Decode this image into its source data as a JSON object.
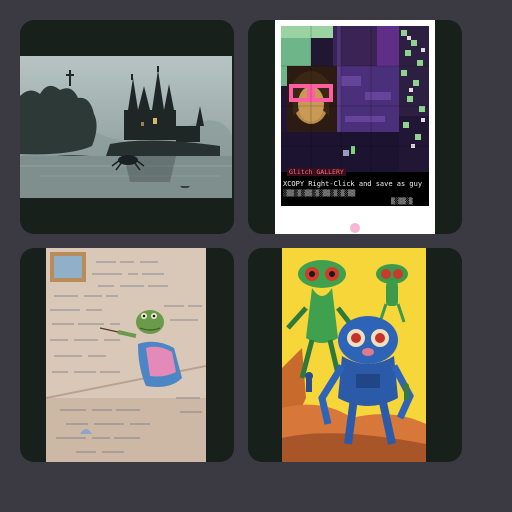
{
  "gallery": {
    "items": [
      {
        "id": "gothic-castle-lake",
        "kind": "image"
      },
      {
        "id": "glitch-mona-lisa",
        "kind": "image",
        "caption_badge": "Glitch GALLERY",
        "caption_line": "XCOPY  Right-Click and save as guy",
        "dither_text": "░▒▒░▒░▒▒░▒░▒▒░▒░▒░▒▒",
        "dither_text_2": "▒░▒▒░▒"
      },
      {
        "id": "frog-chalkboard-equations",
        "kind": "image"
      },
      {
        "id": "green-blue-alien-poster",
        "kind": "image"
      }
    ]
  },
  "colors": {
    "page_background": "#3b3a42",
    "tile_background": "#17201b"
  }
}
